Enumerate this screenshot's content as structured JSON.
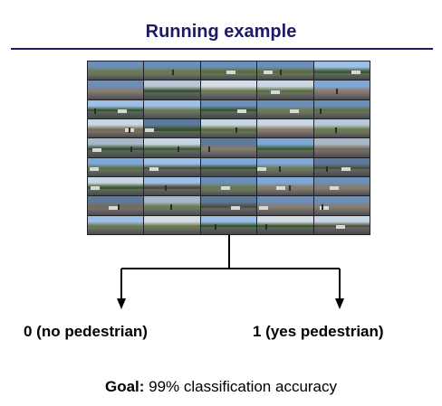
{
  "title": "Running example",
  "labels": {
    "left": "0 (no pedestrian)",
    "right": "1 (yes pedestrian)"
  },
  "goal": {
    "prefix": "Goal:",
    "text": " 99% classification accuracy"
  },
  "colors": {
    "title": "#1f1a66",
    "rule": "#1f1a66"
  }
}
